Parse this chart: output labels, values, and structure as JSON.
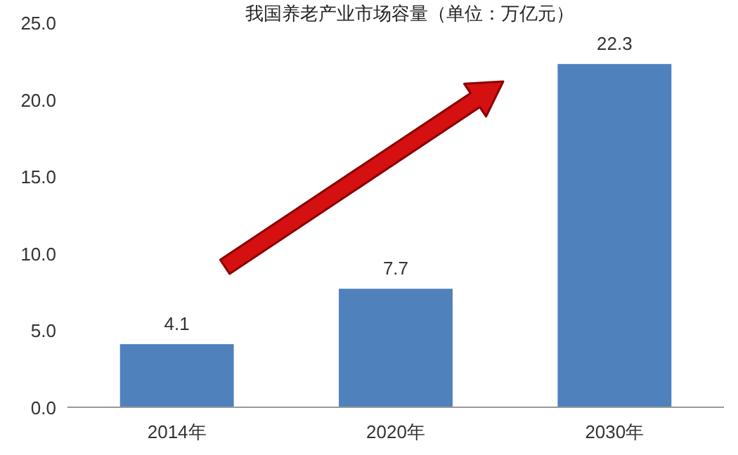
{
  "chart_data": {
    "type": "bar",
    "title": "我国养老产业市场容量（单位：万亿元）",
    "categories": [
      "2014年",
      "2020年",
      "2030年"
    ],
    "values": [
      4.1,
      7.7,
      22.3
    ],
    "color": "#4f81bd",
    "ylim": [
      0,
      25
    ],
    "yticks": [
      {
        "value": 0,
        "label": "0.0"
      },
      {
        "value": 5,
        "label": "5.0"
      },
      {
        "value": 10,
        "label": "10.0"
      },
      {
        "value": 15,
        "label": "15.0"
      },
      {
        "value": 20,
        "label": "20.0"
      },
      {
        "value": 25,
        "label": "25.0"
      }
    ],
    "data_labels": true,
    "grid": false
  }
}
